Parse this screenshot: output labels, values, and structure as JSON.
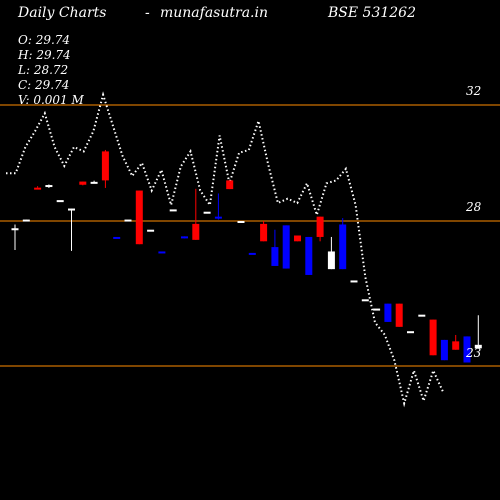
{
  "header": {
    "title": "Daily Charts",
    "dash": "-",
    "site": "munafasutra.in",
    "symbol": "BSE 531262"
  },
  "ohlc": {
    "open": "O: 29.74",
    "high": "H: 29.74",
    "low": "L: 28.72",
    "close": "C: 29.74",
    "volume": "V: 0.001 M"
  },
  "colors": {
    "background": "#000000",
    "up": "#ffffff",
    "down_red": "#ff0000",
    "down_blue": "#0000ff",
    "price_line": "#ff8c00",
    "dotted_line": "#ffffff"
  },
  "chart_data": {
    "type": "candlestick",
    "y_scale": "price",
    "price_levels": [
      {
        "value": 32,
        "label": "32"
      },
      {
        "value": 28,
        "label": "28"
      },
      {
        "value": 23,
        "label": "23"
      }
    ],
    "candles": [
      {
        "open": 27.75,
        "high": 27.88,
        "low": 27.0,
        "close": 27.75,
        "color": "white"
      },
      {
        "open": 28.05,
        "high": 28.05,
        "low": 28.0,
        "close": 28.05,
        "color": "white"
      },
      {
        "open": 29.15,
        "high": 29.2,
        "low": 29.15,
        "close": 29.15,
        "color": "red"
      },
      {
        "open": 29.2,
        "high": 29.26,
        "low": 29.14,
        "close": 29.24,
        "color": "white"
      },
      {
        "open": 28.72,
        "high": 28.72,
        "low": 28.72,
        "close": 28.72,
        "color": "white"
      },
      {
        "open": 28.38,
        "high": 28.43,
        "low": 26.97,
        "close": 28.43,
        "color": "white"
      },
      {
        "open": 29.25,
        "high": 29.36,
        "low": 29.23,
        "close": 29.36,
        "color": "red"
      },
      {
        "open": 29.35,
        "high": 29.39,
        "low": 29.33,
        "close": 29.35,
        "color": "white"
      },
      {
        "open": 30.4,
        "high": 30.45,
        "low": 29.14,
        "close": 29.4,
        "color": "red"
      },
      {
        "open": 27.45,
        "high": 27.45,
        "low": 27.45,
        "close": 27.45,
        "color": "blue"
      },
      {
        "open": 28.05,
        "high": 28.05,
        "low": 28.05,
        "close": 28.05,
        "color": "white"
      },
      {
        "open": 29.05,
        "high": 29.05,
        "low": 27.2,
        "close": 27.2,
        "color": "red"
      },
      {
        "open": 27.7,
        "high": 27.7,
        "low": 27.7,
        "close": 27.7,
        "color": "white"
      },
      {
        "open": 26.95,
        "high": 26.95,
        "low": 26.95,
        "close": 26.95,
        "color": "blue"
      },
      {
        "open": 28.4,
        "high": 28.4,
        "low": 28.4,
        "close": 28.4,
        "color": "white"
      },
      {
        "open": 27.47,
        "high": 27.47,
        "low": 27.4,
        "close": 27.4,
        "color": "blue"
      },
      {
        "open": 27.9,
        "high": 29.11,
        "low": 27.35,
        "close": 27.35,
        "color": "red"
      },
      {
        "open": 28.32,
        "high": 28.32,
        "low": 28.32,
        "close": 28.32,
        "color": "white"
      },
      {
        "open": 28.15,
        "high": 28.95,
        "low": 28.05,
        "close": 28.15,
        "color": "blue"
      },
      {
        "open": 29.4,
        "high": 29.4,
        "low": 29.1,
        "close": 29.1,
        "color": "red"
      },
      {
        "open": 28.0,
        "high": 28.0,
        "low": 28.0,
        "close": 28.0,
        "color": "white"
      },
      {
        "open": 26.9,
        "high": 26.9,
        "low": 26.9,
        "close": 26.9,
        "color": "blue"
      },
      {
        "open": 27.9,
        "high": 28.0,
        "low": 27.3,
        "close": 27.3,
        "color": "red"
      },
      {
        "open": 27.1,
        "high": 27.7,
        "low": 26.45,
        "close": 26.45,
        "color": "blue"
      },
      {
        "open": 27.85,
        "high": 27.85,
        "low": 26.36,
        "close": 26.36,
        "color": "blue"
      },
      {
        "open": 27.5,
        "high": 27.5,
        "low": 27.3,
        "close": 27.3,
        "color": "red"
      },
      {
        "open": 27.45,
        "high": 27.45,
        "low": 26.14,
        "close": 26.14,
        "color": "blue"
      },
      {
        "open": 28.15,
        "high": 28.15,
        "low": 27.3,
        "close": 27.45,
        "color": "red"
      },
      {
        "open": 26.95,
        "high": 27.45,
        "low": 26.34,
        "close": 26.34,
        "color": "white"
      },
      {
        "open": 27.88,
        "high": 28.1,
        "low": 26.34,
        "close": 26.34,
        "color": "blue"
      },
      {
        "open": 25.95,
        "high": 25.95,
        "low": 25.95,
        "close": 25.95,
        "color": "white"
      },
      {
        "open": 25.3,
        "high": 25.3,
        "low": 25.3,
        "close": 25.3,
        "color": "white"
      },
      {
        "open": 24.98,
        "high": 24.98,
        "low": 24.98,
        "close": 24.98,
        "color": "white"
      },
      {
        "open": 25.15,
        "high": 25.15,
        "low": 24.52,
        "close": 24.52,
        "color": "blue"
      },
      {
        "open": 25.15,
        "high": 25.15,
        "low": 24.35,
        "close": 24.35,
        "color": "red"
      },
      {
        "open": 24.2,
        "high": 24.2,
        "low": 24.2,
        "close": 24.2,
        "color": "white"
      },
      {
        "open": 24.77,
        "high": 24.77,
        "low": 24.77,
        "close": 24.77,
        "color": "white"
      },
      {
        "open": 24.6,
        "high": 24.6,
        "low": 23.37,
        "close": 23.37,
        "color": "red"
      },
      {
        "open": 23.9,
        "high": 23.9,
        "low": 23.2,
        "close": 23.2,
        "color": "blue"
      },
      {
        "open": 23.85,
        "high": 24.07,
        "low": 23.56,
        "close": 23.56,
        "color": "red"
      },
      {
        "open": 24.02,
        "high": 24.02,
        "low": 23.12,
        "close": 23.12,
        "color": "blue"
      },
      {
        "open": 23.73,
        "high": 24.75,
        "low": 23.61,
        "close": 23.61,
        "color": "white"
      }
    ],
    "dotted_series": [
      29.65,
      29.65,
      30.55,
      31.1,
      31.71,
      30.55,
      29.9,
      30.55,
      30.4,
      31.1,
      32.35,
      31.3,
      30.25,
      29.55,
      30.0,
      29.05,
      29.76,
      28.55,
      29.88,
      30.4,
      29.05,
      28.55,
      30.95,
      29.3,
      30.35,
      30.45,
      31.45,
      29.95,
      28.62,
      28.77,
      28.62,
      29.3,
      28.21,
      29.3,
      29.4,
      29.8,
      28.55,
      26.07,
      24.5,
      24.08,
      23.19,
      21.71,
      22.84,
      21.8,
      22.84,
      22.11
    ]
  }
}
